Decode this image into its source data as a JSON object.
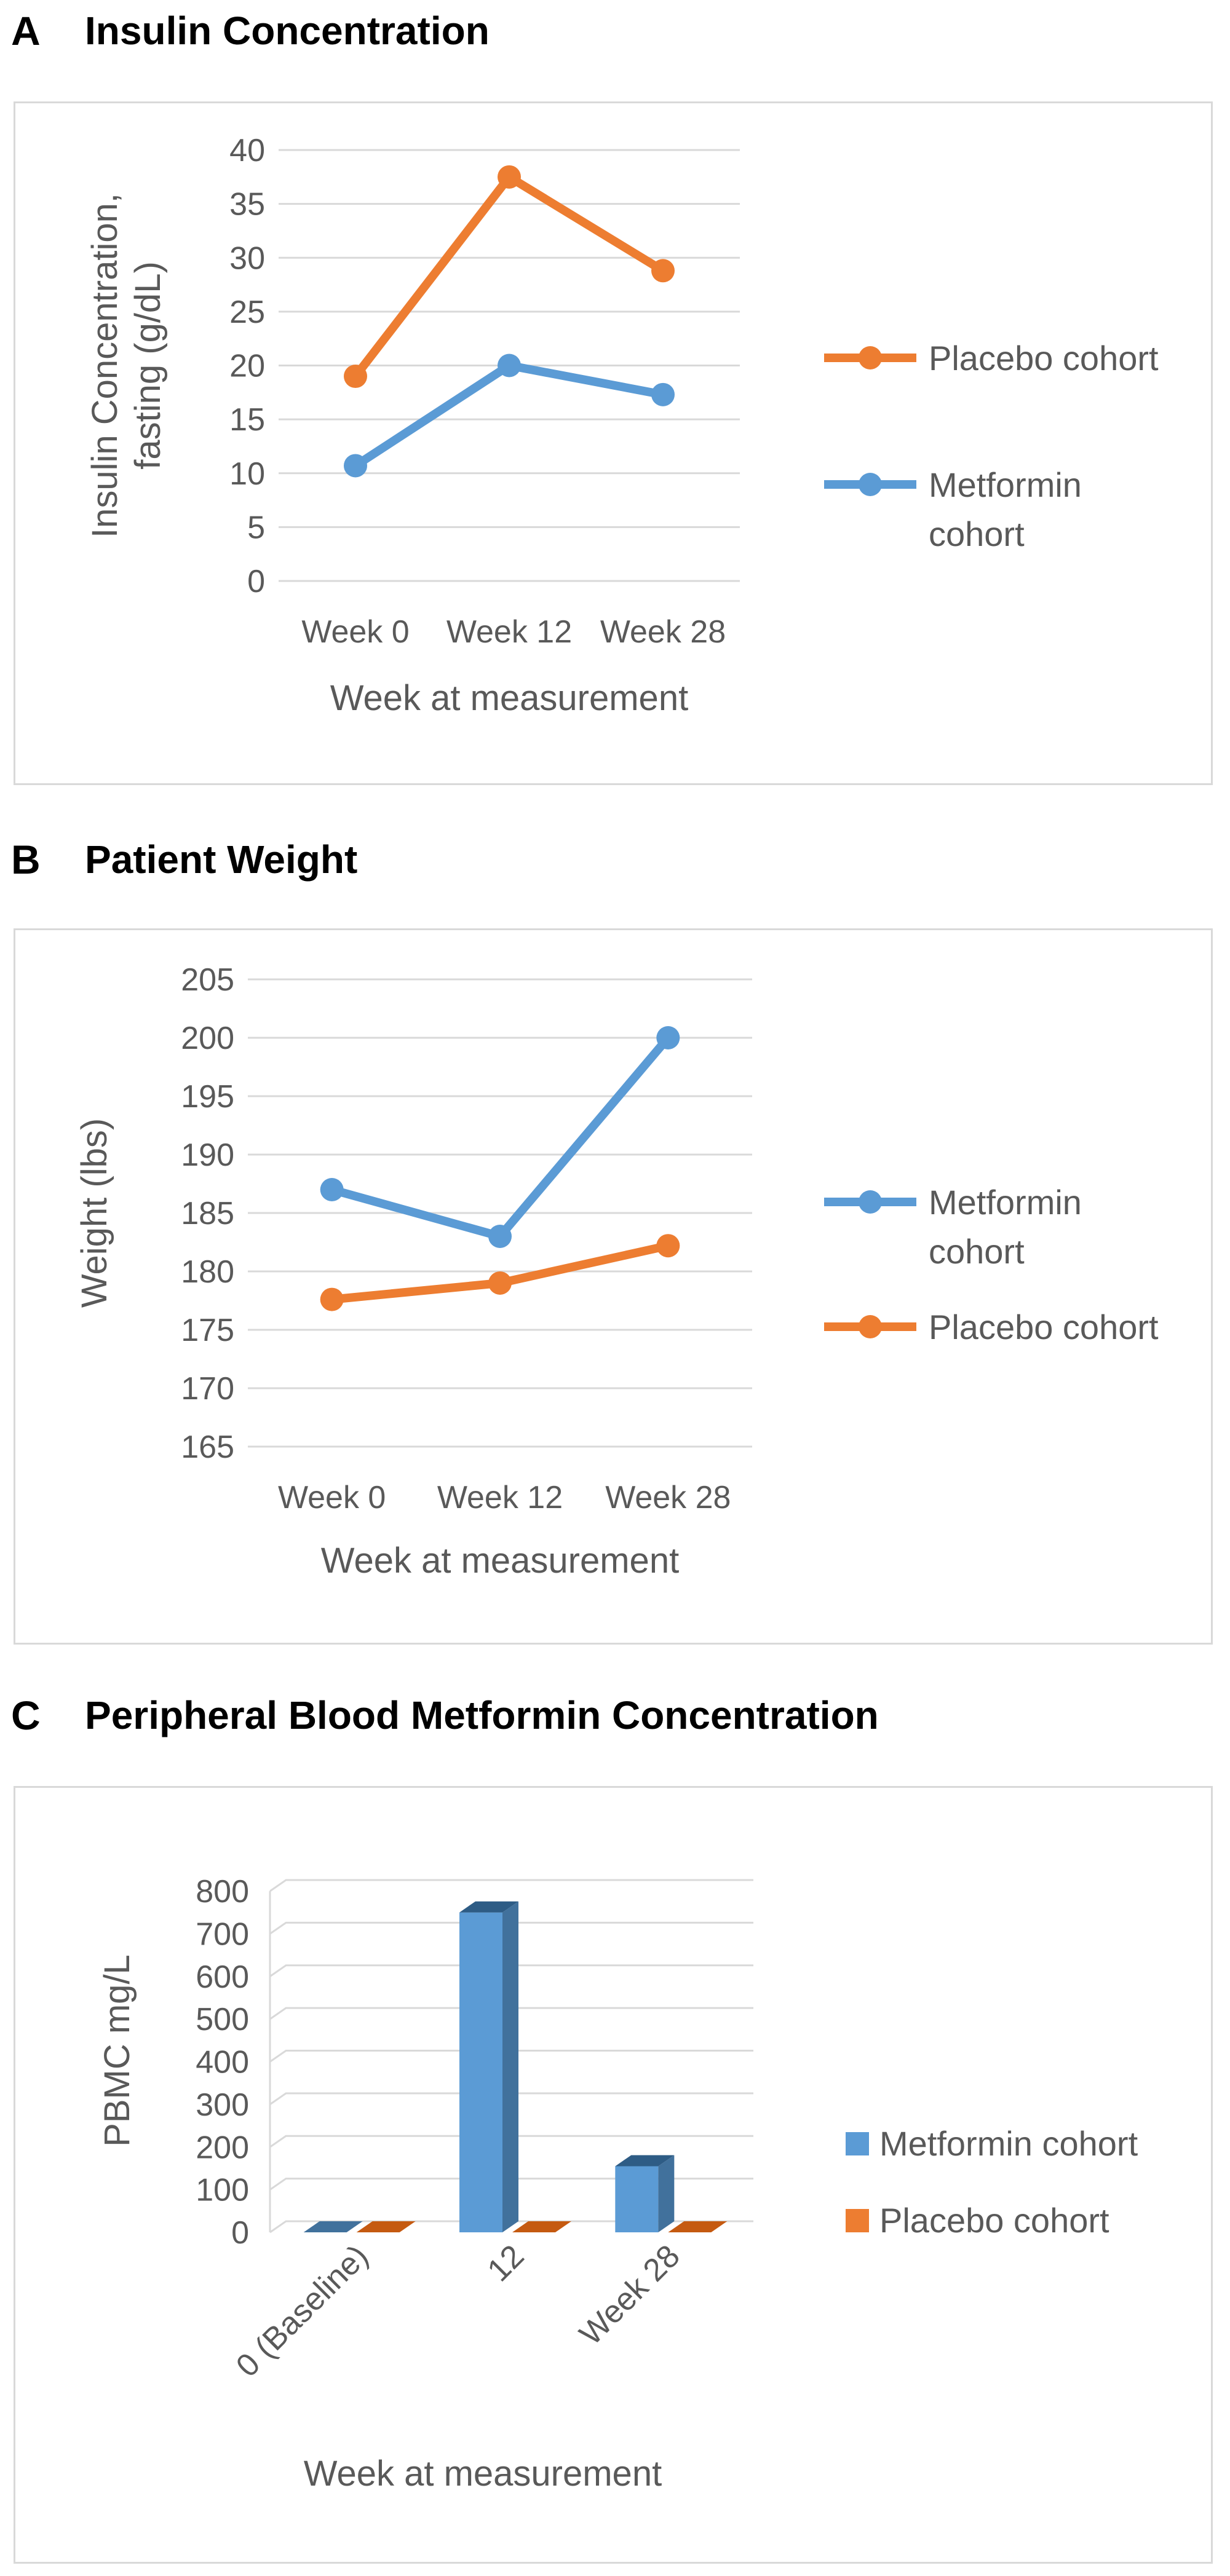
{
  "panels": [
    {
      "letter": "A",
      "title": "Insulin Concentration",
      "chart_data": {
        "type": "line",
        "categories": [
          "Week 0",
          "Week 12",
          "Week 28"
        ],
        "series": [
          {
            "name": "Placebo cohort",
            "values": [
              19,
              37.5,
              28.8
            ],
            "color": "#ED7D31"
          },
          {
            "name": "Metformin cohort",
            "values": [
              10.7,
              20,
              17.3
            ],
            "color": "#5B9BD5"
          }
        ],
        "legend_order": [
          "Placebo cohort",
          "Metformin cohort"
        ],
        "legend_position": "right",
        "xlabel": "Week at measurement",
        "ylabel": "Insulin Concentration, fasting (g/dL)",
        "ylim": [
          0,
          40
        ],
        "yticks": [
          0,
          5,
          10,
          15,
          20,
          25,
          30,
          35,
          40
        ],
        "grid": true
      }
    },
    {
      "letter": "B",
      "title": "Patient Weight",
      "chart_data": {
        "type": "line",
        "categories": [
          "Week 0",
          "Week 12",
          "Week 28"
        ],
        "series": [
          {
            "name": "Metformin cohort",
            "values": [
              187,
              183,
              200
            ],
            "color": "#5B9BD5"
          },
          {
            "name": "Placebo cohort",
            "values": [
              177.6,
              179,
              182.2
            ],
            "color": "#ED7D31"
          }
        ],
        "legend_order": [
          "Metformin cohort",
          "Placebo cohort"
        ],
        "legend_position": "right",
        "xlabel": "Week at measurement",
        "ylabel": "Weight (lbs)",
        "ylim": [
          165,
          205
        ],
        "yticks": [
          165,
          170,
          175,
          180,
          185,
          190,
          195,
          200,
          205
        ],
        "grid": true
      }
    },
    {
      "letter": "C",
      "title": "Peripheral Blood Metformin Concentration",
      "chart_data": {
        "type": "bar",
        "style": "3d",
        "categories": [
          "0 (Baseline)",
          "12",
          "Week 28"
        ],
        "series": [
          {
            "name": "Metformin cohort",
            "values": [
              0,
              750,
              155
            ],
            "color": "#5B9BD5"
          },
          {
            "name": "Placebo cohort",
            "values": [
              0,
              0,
              0
            ],
            "color": "#ED7D31"
          }
        ],
        "legend_position": "right",
        "xlabel": "Week at measurement",
        "ylabel": "PBMC mg/L",
        "ylim": [
          0,
          800
        ],
        "yticks": [
          0,
          100,
          200,
          300,
          400,
          500,
          600,
          700,
          800
        ],
        "grid": true
      }
    }
  ]
}
